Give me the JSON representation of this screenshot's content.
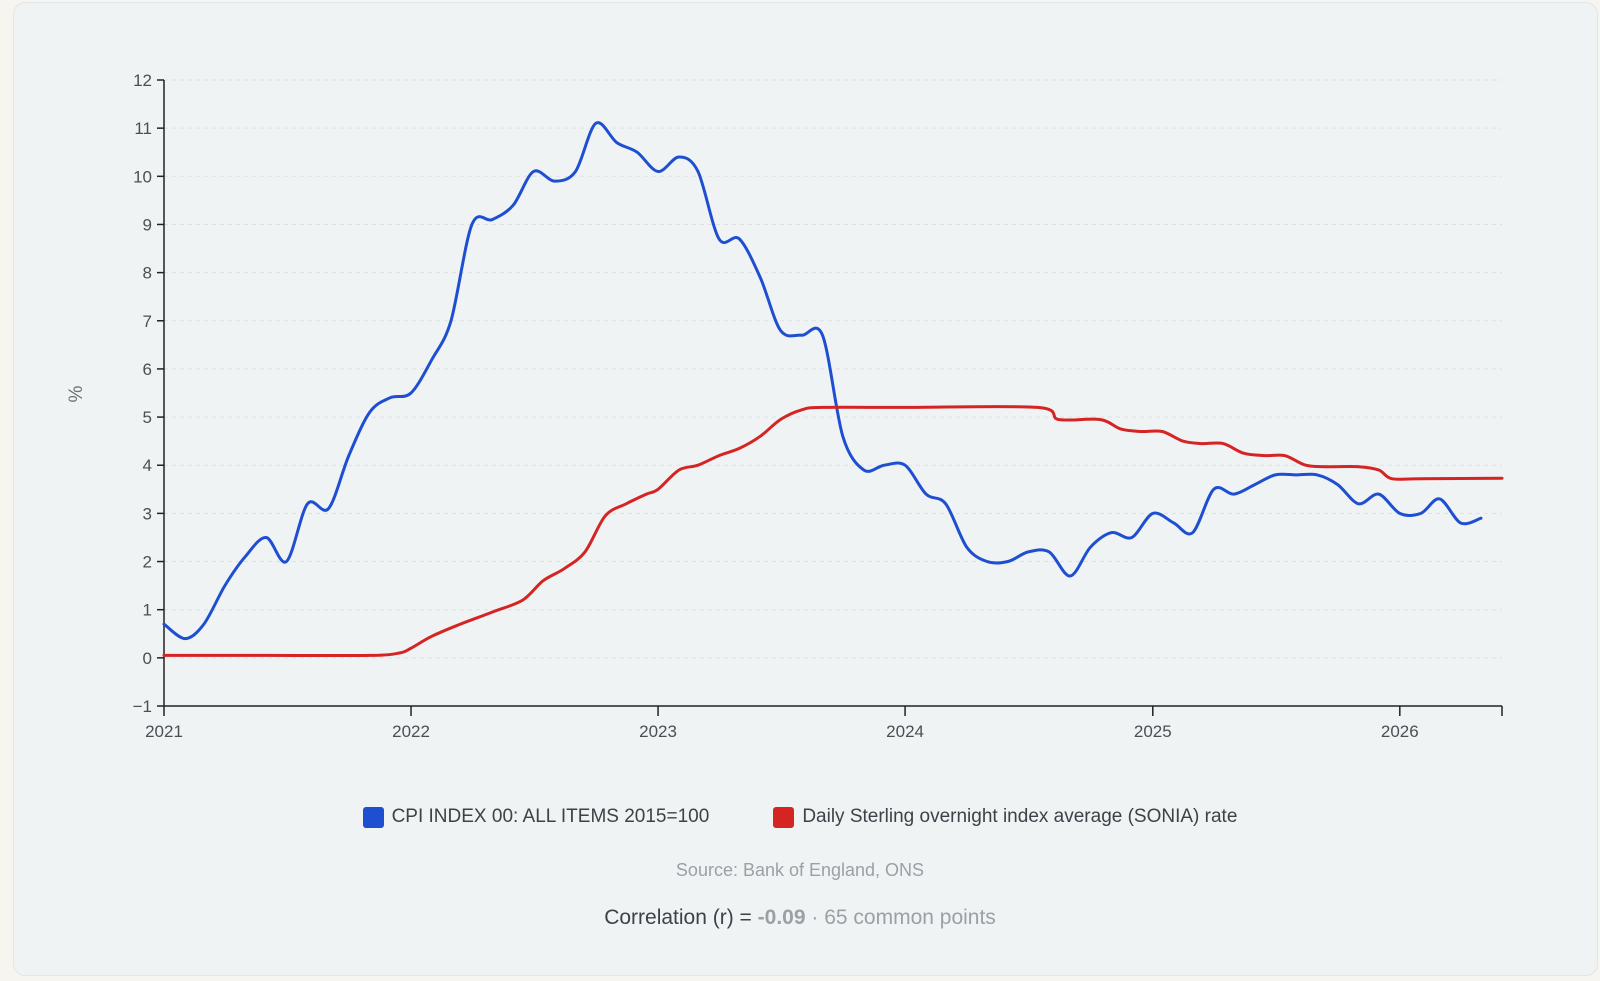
{
  "chart_data": {
    "type": "line",
    "title": "",
    "xlabel": "",
    "ylabel": "%",
    "xlim": [
      "2021-01-01",
      "2026-06-01"
    ],
    "ylim": [
      -1,
      12
    ],
    "x_ticks": [
      "2021",
      "2022",
      "2023",
      "2024",
      "2025",
      "2026"
    ],
    "y_ticks": [
      -1,
      0,
      1,
      2,
      3,
      4,
      5,
      6,
      7,
      8,
      9,
      10,
      11,
      12
    ],
    "grid": true,
    "legend_position": "bottom",
    "series": [
      {
        "name": "CPI INDEX 00: ALL ITEMS 2015=100",
        "color": "#1f4fd1",
        "points": [
          [
            "2021-01-01",
            0.7
          ],
          [
            "2021-02-01",
            0.4
          ],
          [
            "2021-03-01",
            0.7
          ],
          [
            "2021-04-01",
            1.5
          ],
          [
            "2021-05-01",
            2.1
          ],
          [
            "2021-06-01",
            2.5
          ],
          [
            "2021-07-01",
            2.0
          ],
          [
            "2021-08-01",
            3.2
          ],
          [
            "2021-09-01",
            3.1
          ],
          [
            "2021-10-01",
            4.2
          ],
          [
            "2021-11-01",
            5.1
          ],
          [
            "2021-12-01",
            5.4
          ],
          [
            "2022-01-01",
            5.5
          ],
          [
            "2022-02-01",
            6.2
          ],
          [
            "2022-03-01",
            7.0
          ],
          [
            "2022-04-01",
            9.0
          ],
          [
            "2022-05-01",
            9.1
          ],
          [
            "2022-06-01",
            9.4
          ],
          [
            "2022-07-01",
            10.1
          ],
          [
            "2022-08-01",
            9.9
          ],
          [
            "2022-09-01",
            10.1
          ],
          [
            "2022-10-01",
            11.1
          ],
          [
            "2022-11-01",
            10.7
          ],
          [
            "2022-12-01",
            10.5
          ],
          [
            "2023-01-01",
            10.1
          ],
          [
            "2023-02-01",
            10.4
          ],
          [
            "2023-03-01",
            10.1
          ],
          [
            "2023-04-01",
            8.7
          ],
          [
            "2023-05-01",
            8.7
          ],
          [
            "2023-06-01",
            7.9
          ],
          [
            "2023-07-01",
            6.8
          ],
          [
            "2023-08-01",
            6.7
          ],
          [
            "2023-09-01",
            6.7
          ],
          [
            "2023-10-01",
            4.6
          ],
          [
            "2023-11-01",
            3.9
          ],
          [
            "2023-12-01",
            4.0
          ],
          [
            "2024-01-01",
            4.0
          ],
          [
            "2024-02-01",
            3.4
          ],
          [
            "2024-03-01",
            3.2
          ],
          [
            "2024-04-01",
            2.3
          ],
          [
            "2024-05-01",
            2.0
          ],
          [
            "2024-06-01",
            2.0
          ],
          [
            "2024-07-01",
            2.2
          ],
          [
            "2024-08-01",
            2.2
          ],
          [
            "2024-09-01",
            1.7
          ],
          [
            "2024-10-01",
            2.3
          ],
          [
            "2024-11-01",
            2.6
          ],
          [
            "2024-12-01",
            2.5
          ],
          [
            "2025-01-01",
            3.0
          ],
          [
            "2025-02-01",
            2.8
          ],
          [
            "2025-03-01",
            2.6
          ],
          [
            "2025-04-01",
            3.5
          ],
          [
            "2025-05-01",
            3.4
          ],
          [
            "2025-06-01",
            3.6
          ],
          [
            "2025-07-01",
            3.8
          ],
          [
            "2025-08-01",
            3.8
          ],
          [
            "2025-09-01",
            3.8
          ],
          [
            "2025-10-01",
            3.6
          ],
          [
            "2025-11-01",
            3.2
          ],
          [
            "2025-12-01",
            3.4
          ],
          [
            "2026-01-01",
            3.0
          ],
          [
            "2026-02-01",
            3.0
          ],
          [
            "2026-03-01",
            3.3
          ],
          [
            "2026-04-01",
            2.8
          ],
          [
            "2026-05-01",
            2.9
          ]
        ]
      },
      {
        "name": "Daily Sterling overnight index average (SONIA) rate",
        "color": "#d42424",
        "points": [
          [
            "2021-01-01",
            0.05
          ],
          [
            "2021-06-01",
            0.05
          ],
          [
            "2021-11-01",
            0.05
          ],
          [
            "2021-12-15",
            0.1
          ],
          [
            "2022-01-01",
            0.2
          ],
          [
            "2022-02-01",
            0.45
          ],
          [
            "2022-03-15",
            0.7
          ],
          [
            "2022-05-01",
            0.95
          ],
          [
            "2022-06-15",
            1.2
          ],
          [
            "2022-07-15",
            1.6
          ],
          [
            "2022-08-15",
            1.85
          ],
          [
            "2022-09-15",
            2.2
          ],
          [
            "2022-10-15",
            2.95
          ],
          [
            "2022-11-15",
            3.2
          ],
          [
            "2022-12-15",
            3.4
          ],
          [
            "2023-01-01",
            3.5
          ],
          [
            "2023-02-01",
            3.9
          ],
          [
            "2023-03-01",
            4.0
          ],
          [
            "2023-04-01",
            4.2
          ],
          [
            "2023-05-01",
            4.35
          ],
          [
            "2023-06-01",
            4.6
          ],
          [
            "2023-07-01",
            4.95
          ],
          [
            "2023-08-01",
            5.15
          ],
          [
            "2023-09-01",
            5.2
          ],
          [
            "2024-01-01",
            5.2
          ],
          [
            "2024-07-15",
            5.2
          ],
          [
            "2024-08-15",
            4.95
          ],
          [
            "2024-10-15",
            4.95
          ],
          [
            "2024-11-15",
            4.75
          ],
          [
            "2024-12-15",
            4.7
          ],
          [
            "2025-01-15",
            4.7
          ],
          [
            "2025-02-15",
            4.5
          ],
          [
            "2025-03-15",
            4.45
          ],
          [
            "2025-04-15",
            4.45
          ],
          [
            "2025-05-15",
            4.25
          ],
          [
            "2025-06-15",
            4.2
          ],
          [
            "2025-07-15",
            4.2
          ],
          [
            "2025-08-15",
            4.0
          ],
          [
            "2025-09-15",
            3.97
          ],
          [
            "2025-11-01",
            3.97
          ],
          [
            "2025-12-01",
            3.9
          ],
          [
            "2025-12-20",
            3.72
          ],
          [
            "2026-02-01",
            3.72
          ],
          [
            "2026-06-01",
            3.73
          ]
        ]
      }
    ]
  },
  "source_text": "Source: Bank of England, ONS",
  "correlation": {
    "prefix": "Correlation (r) =",
    "value": "-0.09",
    "suffix": "· 65 common points"
  }
}
